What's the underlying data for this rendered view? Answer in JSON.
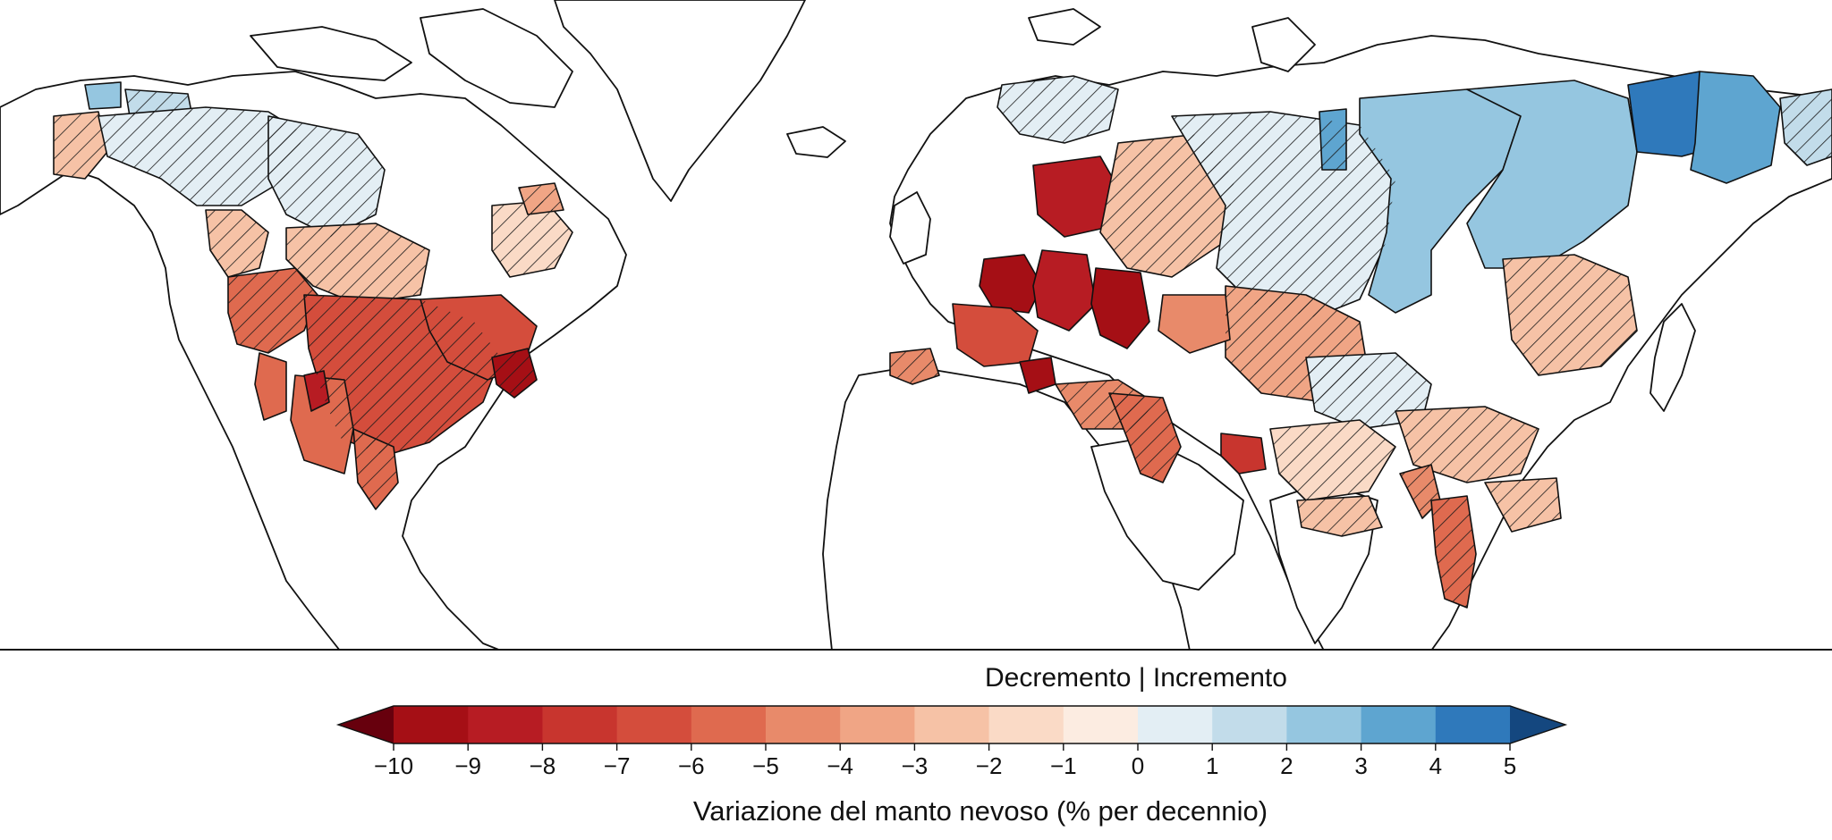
{
  "legend": {
    "split_label": "Decremento | Incremento",
    "title": "Variazione del manto nevoso (% per decennio)",
    "range": [
      -10,
      5
    ],
    "ticks": [
      "−10",
      "−9",
      "−8",
      "−7",
      "−6",
      "−5",
      "−4",
      "−3",
      "−2",
      "−1",
      "0",
      "1",
      "2",
      "3",
      "4",
      "5"
    ],
    "colors": [
      "#a50f15",
      "#b71c23",
      "#c8352e",
      "#d44d3c",
      "#df6a4f",
      "#e88a6a",
      "#f0a585",
      "#f6c2a6",
      "#fadac6",
      "#fcece1",
      "#e3eef4",
      "#c2dcea",
      "#95c6e0",
      "#5ea5d0",
      "#2f79bb"
    ],
    "extend_low_color": "#67000d",
    "extend_high_color": "#14477f"
  },
  "map": {
    "hatch_meaning_shown_without_label": true,
    "regions": [
      {
        "area": "alaska-west",
        "value": -2.5,
        "hatched": true
      },
      {
        "area": "alaska-nw",
        "value": 2.5,
        "hatched": false
      },
      {
        "area": "alaska-north-slope",
        "value": 1.5,
        "hatched": true
      },
      {
        "area": "canada-northwest",
        "value": 0.5,
        "hatched": true
      },
      {
        "area": "canada-central",
        "value": 0.5,
        "hatched": true
      },
      {
        "area": "canada-west-coast",
        "value": -2.5,
        "hatched": true
      },
      {
        "area": "hudson-south",
        "value": -2.5,
        "hatched": true
      },
      {
        "area": "quebec",
        "value": -1.5,
        "hatched": true
      },
      {
        "area": "labrador",
        "value": -3.5,
        "hatched": true
      },
      {
        "area": "us-northwest",
        "value": -5.5,
        "hatched": true
      },
      {
        "area": "us-great-plains",
        "value": -6.5,
        "hatched": true
      },
      {
        "area": "great-lakes",
        "value": -6.5,
        "hatched": false
      },
      {
        "area": "us-northeast-coast",
        "value": -9.5,
        "hatched": true
      },
      {
        "area": "us-southwest",
        "value": -5.5,
        "hatched": false
      },
      {
        "area": "rio-grande",
        "value": -5.5,
        "hatched": true
      },
      {
        "area": "california",
        "value": -5.5,
        "hatched": false
      },
      {
        "area": "great-basin",
        "value": -8.5,
        "hatched": false
      },
      {
        "area": "scandinavia",
        "value": 0.5,
        "hatched": true
      },
      {
        "area": "baltic",
        "value": -8.5,
        "hatched": false
      },
      {
        "area": "western-russia",
        "value": -2.5,
        "hatched": true
      },
      {
        "area": "germany-poland",
        "value": -9.5,
        "hatched": false
      },
      {
        "area": "central-europe",
        "value": -8.5,
        "hatched": false
      },
      {
        "area": "ukraine",
        "value": -9.5,
        "hatched": false
      },
      {
        "area": "danube",
        "value": -6.5,
        "hatched": false
      },
      {
        "area": "balkans",
        "value": -9.5,
        "hatched": false
      },
      {
        "area": "iberia",
        "value": -4.5,
        "hatched": true
      },
      {
        "area": "west-siberia",
        "value": 0.5,
        "hatched": true
      },
      {
        "area": "central-siberia",
        "value": 2.5,
        "hatched": false
      },
      {
        "area": "yenisei-west",
        "value": 3.5,
        "hatched": false
      },
      {
        "area": "lena",
        "value": 2.5,
        "hatched": false
      },
      {
        "area": "east-siberia",
        "value": 4.5,
        "hatched": false
      },
      {
        "area": "kolyma",
        "value": 3.5,
        "hatched": false
      },
      {
        "area": "chukotka",
        "value": 1.5,
        "hatched": true
      },
      {
        "area": "kazakhstan",
        "value": -3.5,
        "hatched": true
      },
      {
        "area": "caspian",
        "value": -4.5,
        "hatched": false
      },
      {
        "area": "mongolia",
        "value": 0.5,
        "hatched": true
      },
      {
        "area": "amur",
        "value": -2.5,
        "hatched": true
      },
      {
        "area": "turkey",
        "value": -4.5,
        "hatched": true
      },
      {
        "area": "mesopotamia",
        "value": -5.5,
        "hatched": true
      },
      {
        "area": "iran",
        "value": -7.5,
        "hatched": false
      },
      {
        "area": "tibet",
        "value": -1.5,
        "hatched": true
      },
      {
        "area": "himalaya",
        "value": -2.5,
        "hatched": true
      },
      {
        "area": "ganges",
        "value": -2.5,
        "hatched": true
      },
      {
        "area": "china-south",
        "value": -2.5,
        "hatched": true
      },
      {
        "area": "mekong",
        "value": -4.5,
        "hatched": true
      },
      {
        "area": "myanmar",
        "value": -5.5,
        "hatched": true
      }
    ]
  }
}
